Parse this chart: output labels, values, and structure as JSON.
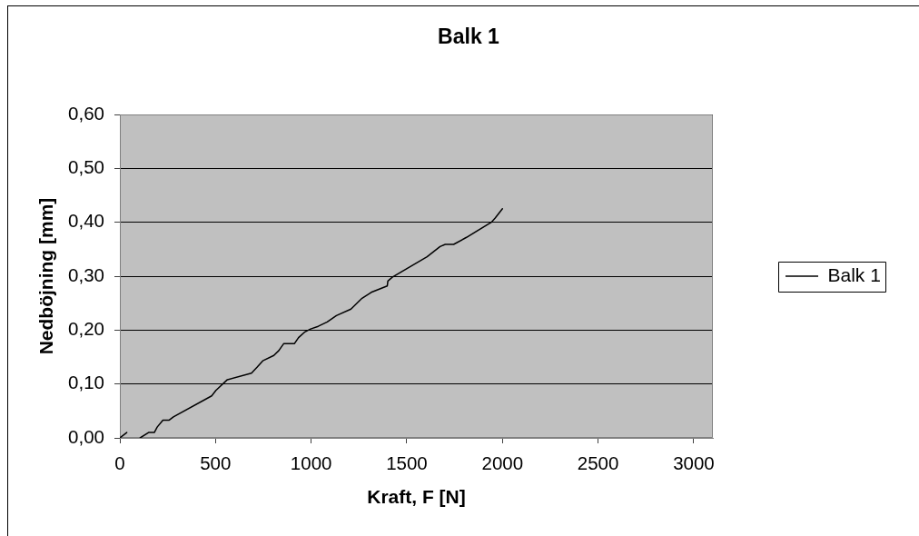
{
  "chart_data": {
    "type": "line",
    "title": "Balk 1",
    "xlabel": "Kraft, F [N]",
    "ylabel": "Nedböjning [mm]",
    "series": [
      {
        "name": "Balk 1",
        "color": "#000000",
        "x": [
          0,
          36,
          70,
          106,
          150,
          180,
          195,
          225,
          258,
          280,
          480,
          502,
          562,
          688,
          717,
          747,
          805,
          831,
          857,
          913,
          934,
          965,
          997,
          1037,
          1084,
          1132,
          1208,
          1266,
          1314,
          1398,
          1401,
          1424,
          1606,
          1674,
          1701,
          1745,
          1812,
          1942,
          1962,
          2000
        ],
        "values": [
          0,
          0.01,
          null,
          0,
          0.01,
          0.01,
          0.02,
          0.033,
          0.033,
          0.039,
          0.078,
          0.088,
          0.108,
          0.12,
          0.131,
          0.143,
          0.153,
          0.162,
          0.175,
          0.175,
          0.186,
          0.196,
          0.202,
          0.207,
          0.215,
          0.227,
          0.239,
          0.259,
          0.27,
          0.282,
          0.291,
          0.298,
          0.336,
          0.355,
          0.359,
          0.359,
          0.372,
          0.4,
          0.408,
          0.425
        ]
      }
    ],
    "xlim": [
      0,
      3100
    ],
    "xticks": [
      0,
      500,
      1000,
      1500,
      2000,
      2500,
      3000
    ],
    "ylim": [
      0,
      0.6
    ],
    "yticks": [
      {
        "value": 0,
        "label": "0,00"
      },
      {
        "value": 0.1,
        "label": "0,10"
      },
      {
        "value": 0.2,
        "label": "0,20"
      },
      {
        "value": 0.3,
        "label": "0,30"
      },
      {
        "value": 0.4,
        "label": "0,40"
      },
      {
        "value": 0.5,
        "label": "0,50"
      },
      {
        "value": 0.6,
        "label": "0,60"
      }
    ],
    "grid": "y",
    "legend": "right",
    "marker": "none"
  }
}
